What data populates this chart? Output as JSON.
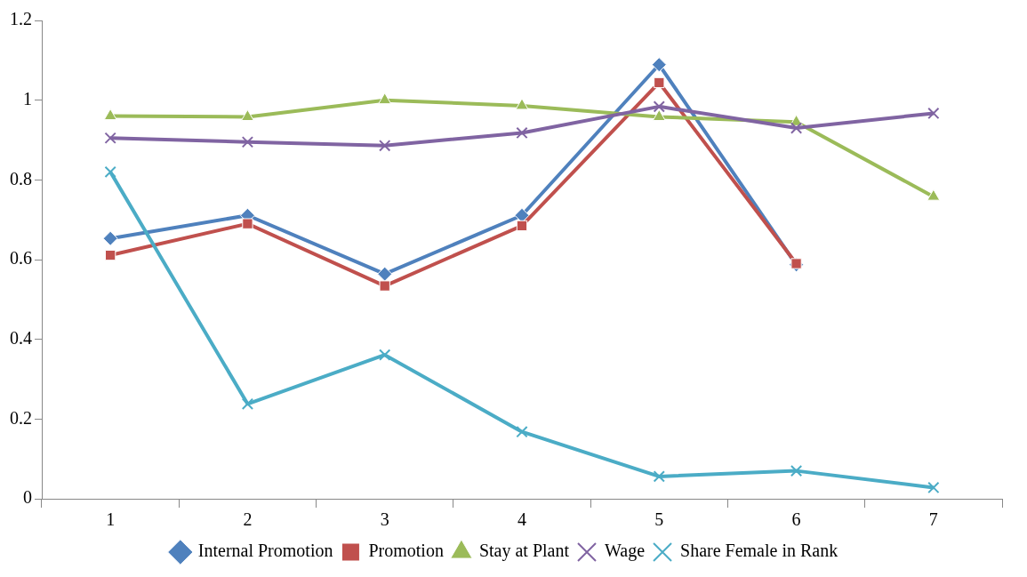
{
  "chart_data": {
    "type": "line",
    "categories": [
      "1",
      "2",
      "3",
      "4",
      "5",
      "6",
      "7"
    ],
    "series": [
      {
        "name": "Internal Promotion",
        "color": "#4f81bd",
        "marker": "diamond",
        "values": [
          0.653,
          0.711,
          0.564,
          0.711,
          1.089,
          0.587,
          null
        ]
      },
      {
        "name": "Promotion",
        "color": "#c0504d",
        "marker": "square",
        "values": [
          0.611,
          0.69,
          0.534,
          0.685,
          1.044,
          0.59,
          null
        ]
      },
      {
        "name": "Stay at Plant",
        "color": "#9bbb59",
        "marker": "triangle",
        "values": [
          0.96,
          0.958,
          1.0,
          0.986,
          0.958,
          0.945,
          0.758
        ]
      },
      {
        "name": "Wage",
        "color": "#8064a2",
        "marker": "cross",
        "values": [
          0.905,
          0.895,
          0.886,
          0.918,
          0.984,
          0.93,
          0.967
        ]
      },
      {
        "name": "Share Female in Rank",
        "color": "#4bacc6",
        "marker": "cross",
        "values": [
          0.82,
          0.238,
          0.361,
          0.168,
          0.056,
          0.07,
          0.028
        ]
      }
    ],
    "ylim": [
      0,
      1.2
    ],
    "yticks": [
      0,
      0.2,
      0.4,
      0.6,
      0.8,
      1,
      1.2
    ],
    "grid": false,
    "legend": "bottom",
    "line_style": "solid"
  }
}
